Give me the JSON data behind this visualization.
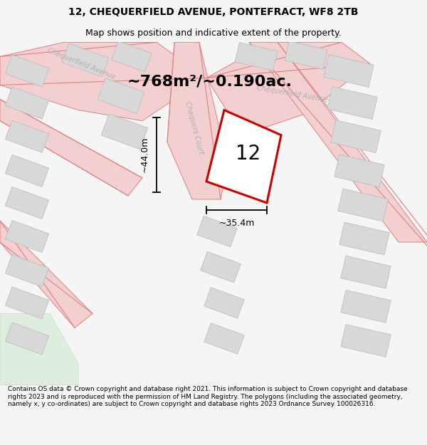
{
  "title": "12, CHEQUERFIELD AVENUE, PONTEFRACT, WF8 2TB",
  "subtitle": "Map shows position and indicative extent of the property.",
  "area_text": "~768m²/~0.190ac.",
  "label_12": "12",
  "dim_height": "~44.0m",
  "dim_width": "~35.4m",
  "footer": "Contains OS data © Crown copyright and database right 2021. This information is subject to Crown copyright and database rights 2023 and is reproduced with the permission of HM Land Registry. The polygons (including the associated geometry, namely x, y co-ordinates) are subject to Crown copyright and database rights 2023 Ordnance Survey 100026316.",
  "bg_color": "#f5f5f5",
  "map_bg": "#ffffff",
  "road_color": "#e08080",
  "road_fill": "#f2d0d0",
  "block_fill": "#d8d8d8",
  "block_edge": "#b8b8b8",
  "green_fill": "#ddeedd",
  "green_edge": "#c8ddc8",
  "plot_color": "#cc0000",
  "street_color": "#b0b0b0",
  "dim_color": "#000000",
  "title_fs": 10,
  "subtitle_fs": 9,
  "area_fs": 16,
  "label_fs": 20,
  "dim_fs": 9,
  "street_fs": 7,
  "footer_fs": 6.5
}
